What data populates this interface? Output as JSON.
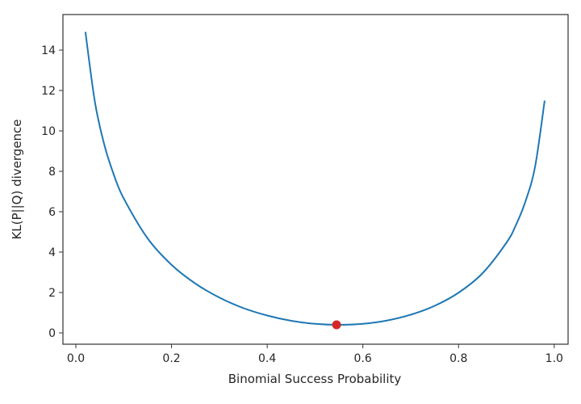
{
  "chart_data": {
    "type": "line",
    "title": "",
    "xlabel": "Binomial Success Probability",
    "ylabel": "KL(P||Q) divergence",
    "xlim": [
      -0.027,
      1.029
    ],
    "ylim": [
      -0.56,
      15.76
    ],
    "xticks": [
      0.0,
      0.2,
      0.4,
      0.6,
      0.8,
      1.0
    ],
    "xtick_labels": [
      "0.0",
      "0.2",
      "0.4",
      "0.6",
      "0.8",
      "1.0"
    ],
    "yticks": [
      0,
      2,
      4,
      6,
      8,
      10,
      12,
      14
    ],
    "ytick_labels": [
      "0",
      "2",
      "4",
      "6",
      "8",
      "10",
      "12",
      "14"
    ],
    "grid": false,
    "series": [
      {
        "color": "#1f77b4",
        "x": [
          0.02,
          0.04,
          0.06,
          0.08,
          0.1,
          0.15,
          0.2,
          0.25,
          0.3,
          0.35,
          0.4,
          0.45,
          0.5,
          0.55,
          0.6,
          0.65,
          0.7,
          0.75,
          0.8,
          0.85,
          0.9,
          0.92,
          0.94,
          0.96,
          0.98
        ],
        "y": [
          14.9,
          11.41,
          9.27,
          7.79,
          6.66,
          4.68,
          3.37,
          2.44,
          1.75,
          1.23,
          0.86,
          0.6,
          0.45,
          0.4,
          0.45,
          0.61,
          0.9,
          1.34,
          1.99,
          2.95,
          4.46,
          5.34,
          6.52,
          8.23,
          11.5
        ]
      }
    ],
    "highlight_point": {
      "x": 0.545,
      "y": 0.4,
      "color": "#d62728"
    }
  }
}
